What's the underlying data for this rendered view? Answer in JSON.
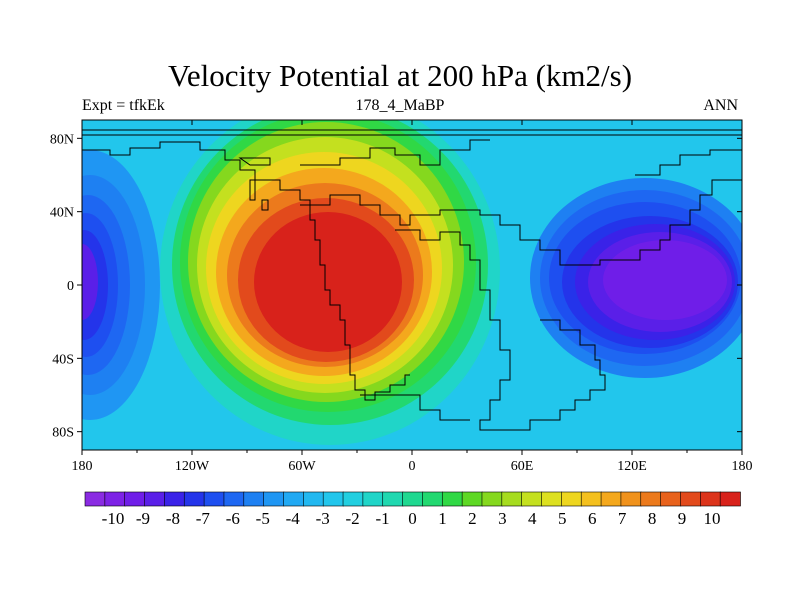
{
  "header": {
    "title": "Velocity Potential at 200 hPa (km2/s)",
    "left_label": "Expt = tfkEk",
    "center_label": "178_4_MaBP",
    "right_label": "ANN"
  },
  "map": {
    "projection": "cylindrical-equidistant",
    "lon_range": [
      -180,
      180
    ],
    "lat_range": [
      -90,
      90
    ],
    "x_ticks": [
      {
        "lon": -180,
        "label": "180"
      },
      {
        "lon": -120,
        "label": "120W"
      },
      {
        "lon": -60,
        "label": "60W"
      },
      {
        "lon": 0,
        "label": "0"
      },
      {
        "lon": 60,
        "label": "60E"
      },
      {
        "lon": 120,
        "label": "120E"
      },
      {
        "lon": 180,
        "label": "180"
      }
    ],
    "y_ticks": [
      {
        "lat": 80,
        "label": "80N"
      },
      {
        "lat": 40,
        "label": "40N"
      },
      {
        "lat": 0,
        "label": "0"
      },
      {
        "lat": -40,
        "label": "40S"
      },
      {
        "lat": -80,
        "label": "80S"
      }
    ],
    "field_centers": [
      {
        "name": "velocity-potential-maximum",
        "lon": -40,
        "lat": 5,
        "value": 10
      },
      {
        "name": "velocity-potential-minimum-pacific",
        "lon": 150,
        "lat": 5,
        "value": -10
      },
      {
        "name": "velocity-potential-minimum-dateline",
        "lon": -178,
        "lat": 0,
        "value": -9
      }
    ]
  },
  "colorbar": {
    "levels": [
      "-10",
      "-9",
      "-8",
      "-7",
      "-6",
      "-5",
      "-4",
      "-3",
      "-2",
      "-1",
      "0",
      "1",
      "2",
      "3",
      "4",
      "5",
      "6",
      "7",
      "8",
      "9",
      "10"
    ],
    "colors": [
      "#8a2be2",
      "#7d22e6",
      "#6f1ee8",
      "#5a1fe8",
      "#3a22e8",
      "#2434ea",
      "#1e4ff0",
      "#1e67f2",
      "#1e80f2",
      "#1f96f3",
      "#21a9f3",
      "#22b8f0",
      "#22c6ec",
      "#22cfe0",
      "#20d5c8",
      "#20d8b0",
      "#1fd890",
      "#22d870",
      "#30d845",
      "#5ed824",
      "#85d81e",
      "#a6dc1f",
      "#c4e01f",
      "#dde020",
      "#eed61f",
      "#f4c01e",
      "#f4a81d",
      "#f0921c",
      "#ec7a1c",
      "#e8621c",
      "#e24a1c",
      "#dc341b",
      "#d8221b"
    ]
  }
}
